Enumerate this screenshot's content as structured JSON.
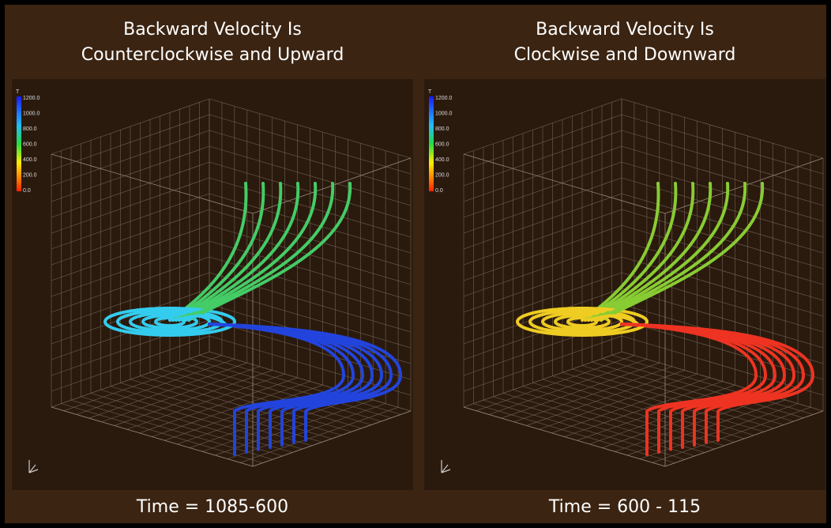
{
  "panels": [
    {
      "title": [
        "Backward Velocity Is",
        "Counterclockwise and Upward"
      ],
      "colorbar": {
        "label": "T",
        "ticks": [
          "1200.0",
          "1000.0",
          "800.0",
          "600.0",
          "400.0",
          "200.0",
          "0.0"
        ]
      },
      "time_label": "Time = 1085-600"
    },
    {
      "title": [
        "Backward Velocity Is",
        "Clockwise and Downward"
      ],
      "colorbar": {
        "label": "T",
        "ticks": [
          "1200.0",
          "1000.0",
          "800.0",
          "600.0",
          "400.0",
          "200.0",
          "0.0"
        ]
      },
      "time_label": "Time = 600 - 115"
    }
  ]
}
